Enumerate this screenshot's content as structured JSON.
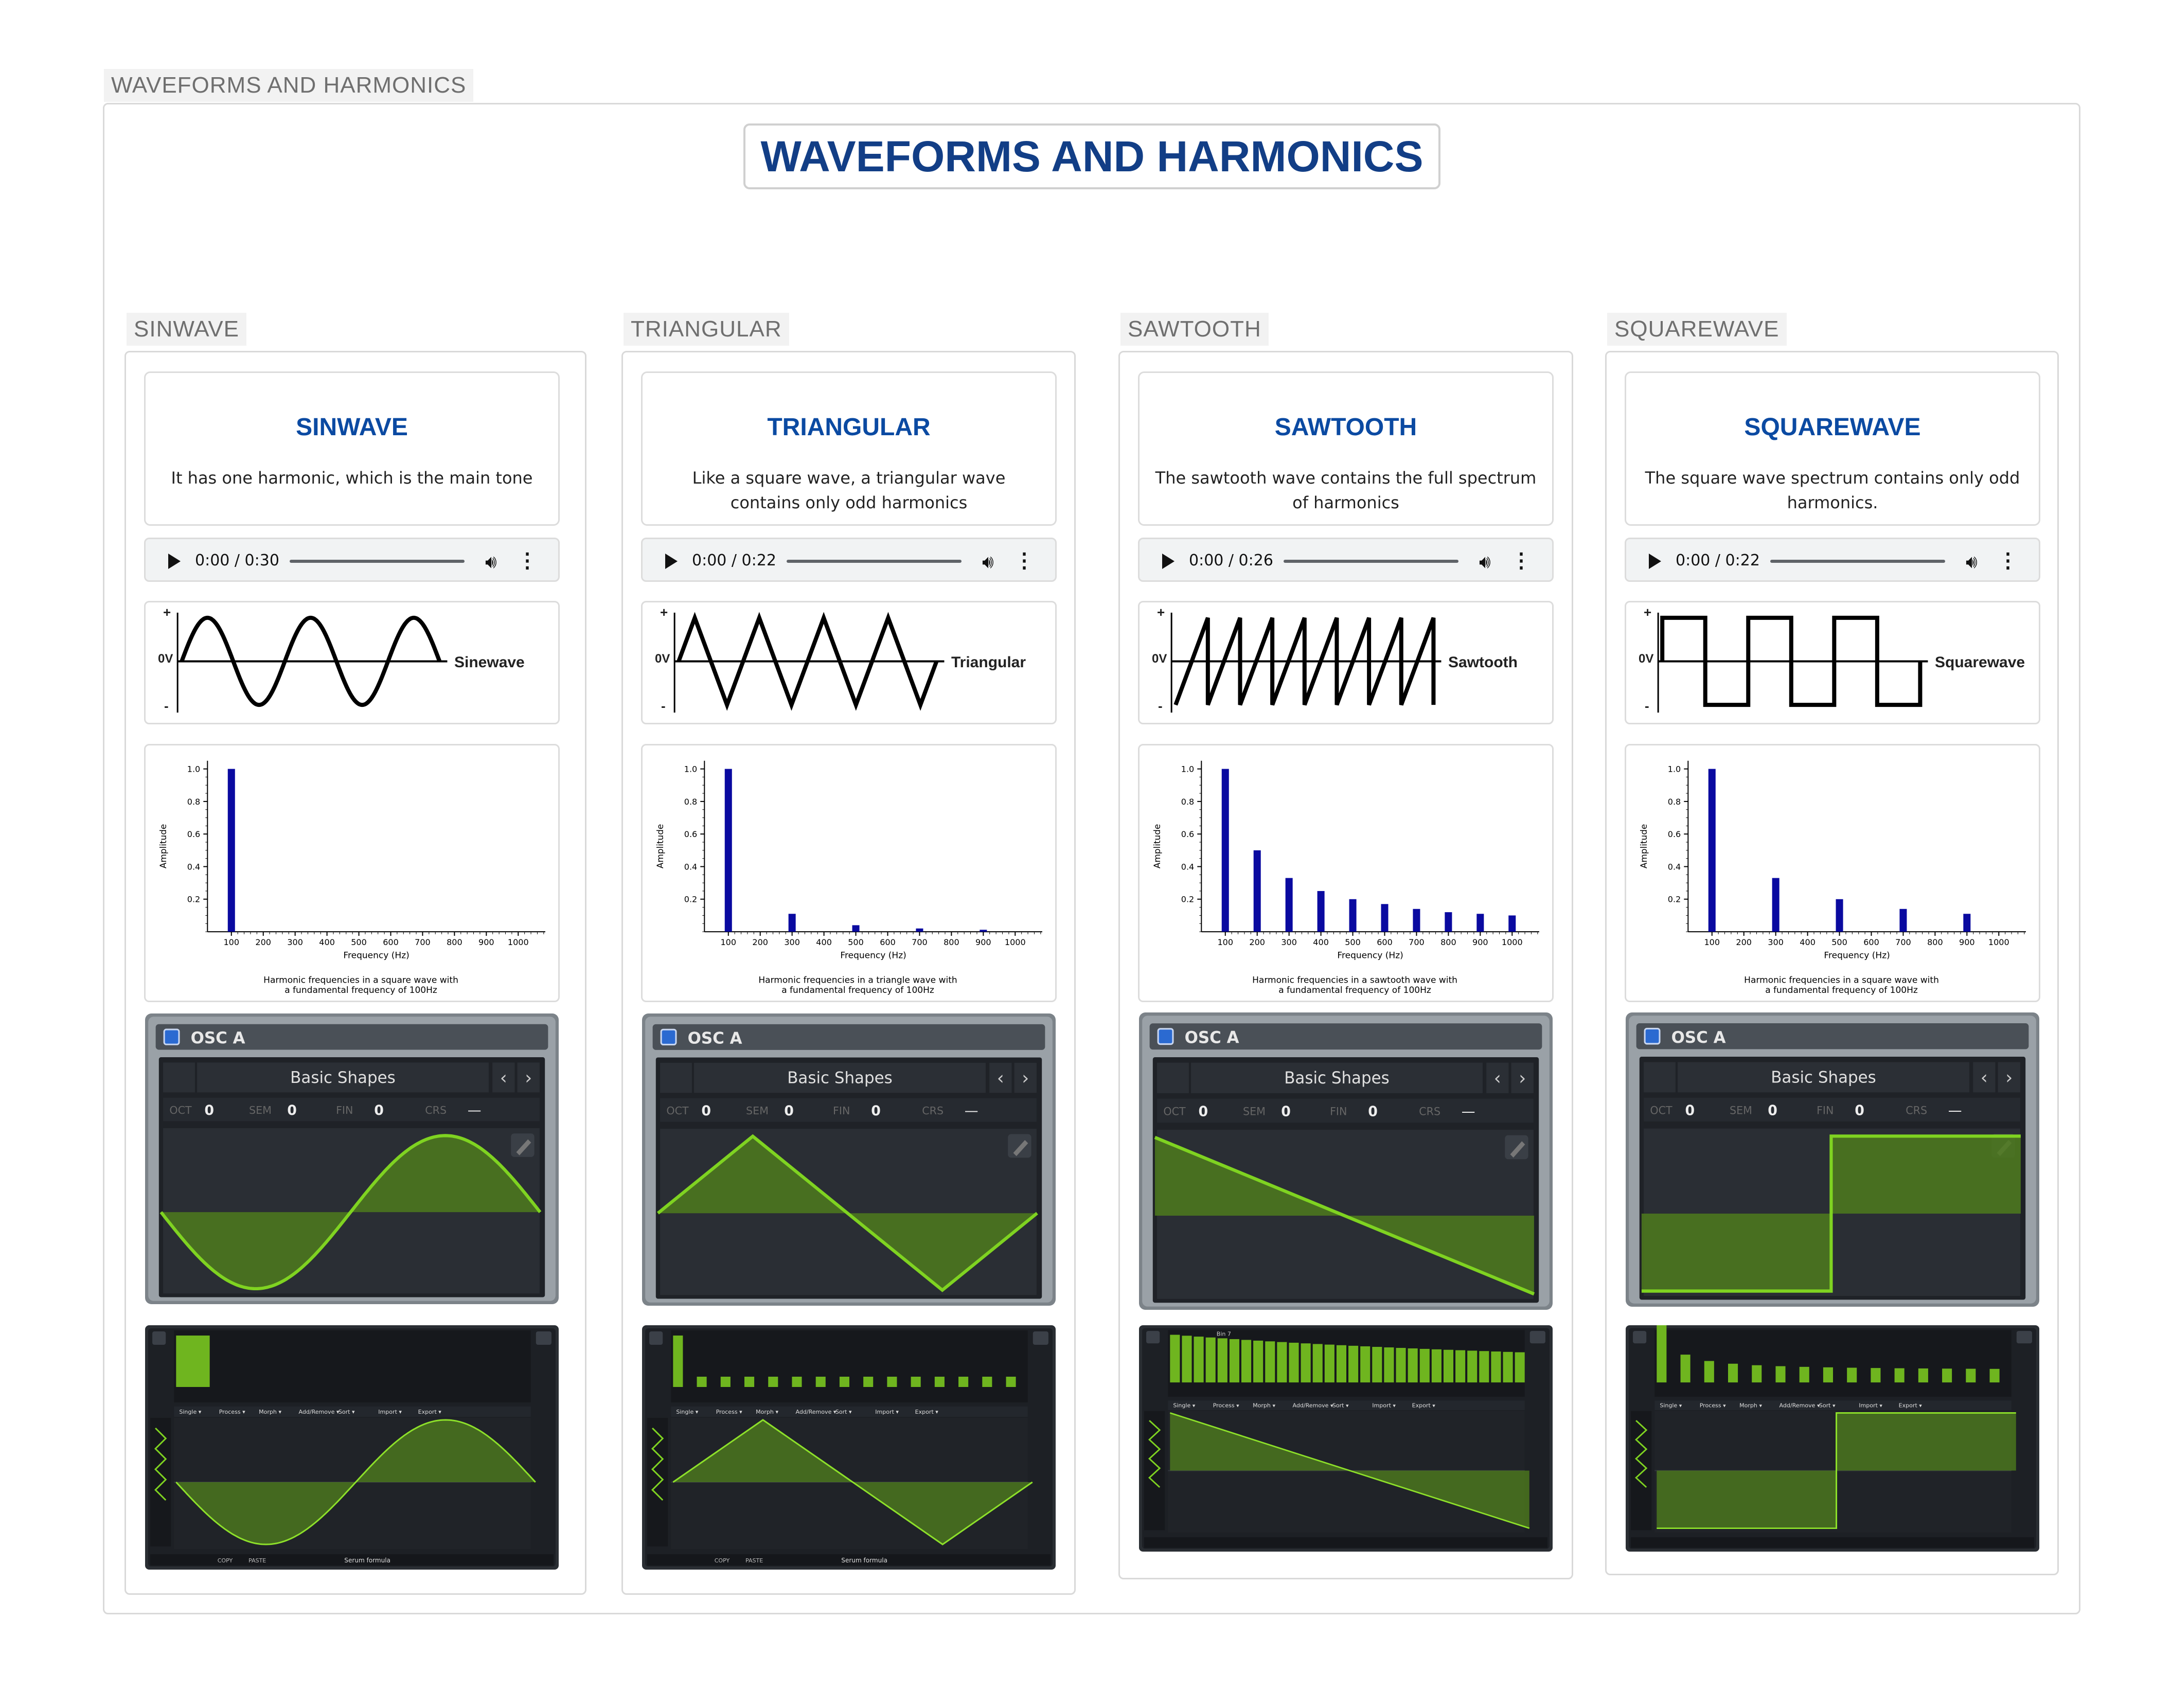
{
  "outer_tag": "WAVEFORMS AND HARMONICS",
  "main_title": "WAVEFORMS AND HARMONICS",
  "columns": [
    {
      "tag": "SINWAVE",
      "title": "SINWAVE",
      "description": "It has one harmonic, which is the main tone",
      "player": {
        "time": "0:00 / 0:30"
      },
      "wave_label": "Sinewave",
      "wave_plus": "+",
      "wave_zero": "0V",
      "wave_minus": "-",
      "chart_caption_1": "Harmonic frequencies in a square wave with",
      "chart_caption_2": "a fundamental frequency of 100Hz",
      "osc": {
        "title": "OSC A",
        "preset": "Basic Shapes",
        "oct_label": "OCT",
        "oct": "0",
        "sem_label": "SEM",
        "sem": "0",
        "fin_label": "FIN",
        "fin": "0",
        "crs_label": "CRS",
        "crs": "—"
      },
      "editor": {
        "menu": [
          "Single",
          "Process",
          "Morph",
          "Add/Remove",
          "Sort",
          "Import",
          "Export"
        ],
        "footer": "Serum formula",
        "copy": "COPY",
        "paste": "PASTE"
      }
    },
    {
      "tag": "TRIANGULAR",
      "title": "TRIANGULAR",
      "description": "Like a square wave, a triangular wave contains only odd harmonics",
      "player": {
        "time": "0:00 / 0:22"
      },
      "wave_label": "Triangular",
      "wave_plus": "+",
      "wave_zero": "0V",
      "wave_minus": "-",
      "chart_caption_1": "Harmonic frequencies in a triangle wave with",
      "chart_caption_2": "a fundamental frequency of 100Hz",
      "osc": {
        "title": "OSC A",
        "preset": "Basic Shapes",
        "oct_label": "OCT",
        "oct": "0",
        "sem_label": "SEM",
        "sem": "0",
        "fin_label": "FIN",
        "fin": "0",
        "crs_label": "CRS",
        "crs": "—"
      },
      "editor": {
        "menu": [
          "Single",
          "Process",
          "Morph",
          "Add/Remove",
          "Sort",
          "Import",
          "Export"
        ],
        "footer": "Serum formula",
        "copy": "COPY",
        "paste": "PASTE"
      }
    },
    {
      "tag": "SAWTOOTH",
      "title": "SAWTOOTH",
      "description": "The sawtooth wave contains the full spectrum of harmonics",
      "player": {
        "time": "0:00 / 0:26"
      },
      "wave_label": "Sawtooth",
      "wave_plus": "+",
      "wave_zero": "0V",
      "wave_minus": "-",
      "chart_caption_1": "Harmonic frequencies in a sawtooth wave with",
      "chart_caption_2": "a fundamental frequency of 100Hz",
      "osc": {
        "title": "OSC A",
        "preset": "Basic Shapes",
        "oct_label": "OCT",
        "oct": "0",
        "sem_label": "SEM",
        "sem": "0",
        "fin_label": "FIN",
        "fin": "0",
        "crs_label": "CRS",
        "crs": "—"
      },
      "editor": {
        "menu": [
          "Single",
          "Process",
          "Morph",
          "Add/Remove",
          "Sort",
          "Import",
          "Export"
        ],
        "footer": "",
        "copy": "",
        "paste": "",
        "bin": "Bin 7"
      }
    },
    {
      "tag": "SQUAREWAVE",
      "title": "SQUAREWAVE",
      "description": "The square wave spectrum contains only odd harmonics.",
      "player": {
        "time": "0:00 / 0:22"
      },
      "wave_label": "Squarewave",
      "wave_plus": "+",
      "wave_zero": "0V",
      "wave_minus": "-",
      "chart_caption_1": "Harmonic frequencies in a square wave with",
      "chart_caption_2": "a fundamental frequency of 100Hz",
      "osc": {
        "title": "OSC A",
        "preset": "Basic Shapes",
        "oct_label": "OCT",
        "oct": "0",
        "sem_label": "SEM",
        "sem": "0",
        "fin_label": "FIN",
        "fin": "0",
        "crs_label": "CRS",
        "crs": "—"
      },
      "editor": {
        "menu": [
          "Single",
          "Process",
          "Morph",
          "Add/Remove",
          "Sort",
          "Import",
          "Export"
        ],
        "footer": "",
        "copy": "",
        "paste": ""
      }
    }
  ],
  "chart_data": [
    {
      "type": "bar",
      "xlabel": "Frequency (Hz)",
      "ylabel": "Amplitude",
      "x": [
        100,
        200,
        300,
        400,
        500,
        600,
        700,
        800,
        900,
        1000
      ],
      "values": [
        1.0,
        0,
        0,
        0,
        0,
        0,
        0,
        0,
        0,
        0
      ],
      "xticks": [
        "100",
        "200",
        "300",
        "400",
        "500",
        "600",
        "700",
        "800",
        "900",
        "1000"
      ],
      "yticks": [
        "0.2",
        "0.4",
        "0.6",
        "0.8",
        "1.0"
      ],
      "ylim": [
        0,
        1.05
      ]
    },
    {
      "type": "bar",
      "xlabel": "Frequency (Hz)",
      "ylabel": "Amplitude",
      "x": [
        100,
        200,
        300,
        400,
        500,
        600,
        700,
        800,
        900,
        1000
      ],
      "values": [
        1.0,
        0,
        0.11,
        0,
        0.04,
        0,
        0.02,
        0,
        0.012,
        0
      ],
      "xticks": [
        "100",
        "200",
        "300",
        "400",
        "500",
        "600",
        "700",
        "800",
        "900",
        "1000"
      ],
      "yticks": [
        "0.2",
        "0.4",
        "0.6",
        "0.8",
        "1.0"
      ],
      "ylim": [
        0,
        1.05
      ]
    },
    {
      "type": "bar",
      "xlabel": "Frequency (Hz)",
      "ylabel": "Amplitude",
      "x": [
        100,
        200,
        300,
        400,
        500,
        600,
        700,
        800,
        900,
        1000
      ],
      "values": [
        1.0,
        0.5,
        0.33,
        0.25,
        0.2,
        0.17,
        0.14,
        0.12,
        0.11,
        0.1
      ],
      "xticks": [
        "100",
        "200",
        "300",
        "400",
        "500",
        "600",
        "700",
        "800",
        "900",
        "1000"
      ],
      "yticks": [
        "0.2",
        "0.4",
        "0.6",
        "0.8",
        "1.0"
      ],
      "ylim": [
        0,
        1.05
      ]
    },
    {
      "type": "bar",
      "xlabel": "Frequency (Hz)",
      "ylabel": "Amplitude",
      "x": [
        100,
        200,
        300,
        400,
        500,
        600,
        700,
        800,
        900,
        1000
      ],
      "values": [
        1.0,
        0,
        0.33,
        0,
        0.2,
        0,
        0.14,
        0,
        0.11,
        0
      ],
      "xticks": [
        "100",
        "200",
        "300",
        "400",
        "500",
        "600",
        "700",
        "800",
        "900",
        "1000"
      ],
      "yticks": [
        "0.2",
        "0.4",
        "0.6",
        "0.8",
        "1.0"
      ],
      "ylim": [
        0,
        1.05
      ]
    }
  ],
  "colors": {
    "title_blue": "#123e86",
    "heading_blue": "#0b4aa2",
    "bar_blue": "#0a0aa0",
    "synth_green": "#7fd321",
    "synth_dark": "#1d2025"
  }
}
